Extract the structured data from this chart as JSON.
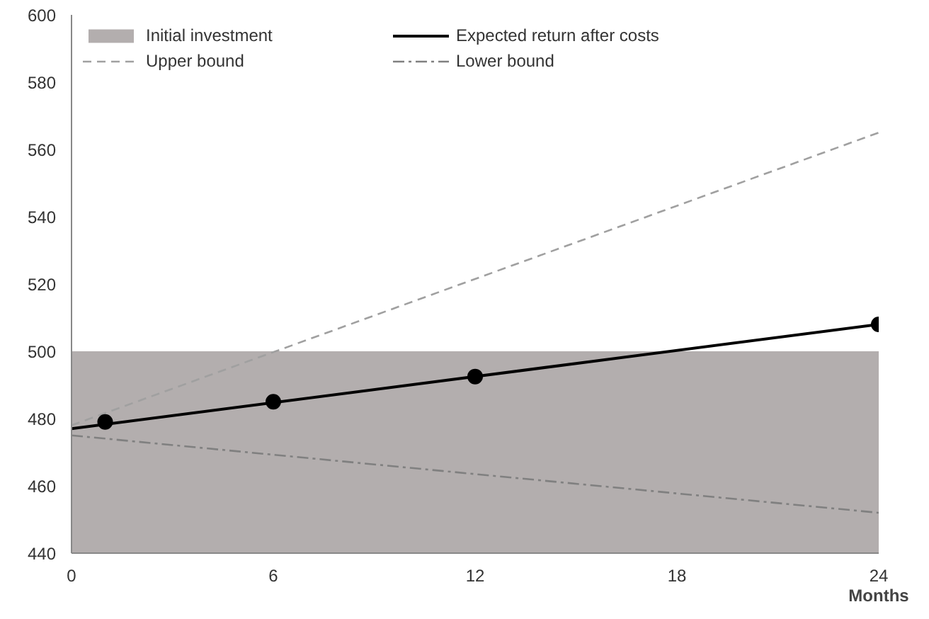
{
  "chart_data": {
    "type": "line",
    "xlabel": "Months",
    "xlim": [
      0,
      24
    ],
    "xticks": [
      0,
      6,
      12,
      18,
      24
    ],
    "ylim": [
      440,
      600
    ],
    "yticks": [
      440,
      460,
      480,
      500,
      520,
      540,
      560,
      580,
      600
    ],
    "grid": false,
    "legend": "top left",
    "series": [
      {
        "name": "Initial investment",
        "type": "area",
        "color": "#b3aeae",
        "x": [
          0,
          24
        ],
        "values": [
          500,
          500
        ]
      },
      {
        "name": "Expected return after costs",
        "color": "#000000",
        "line_style": "solid",
        "x": [
          0,
          24
        ],
        "values": [
          477,
          508
        ]
      },
      {
        "name": "Upper bound",
        "color": "#a0a0a0",
        "line_style": "dashed",
        "x": [
          0,
          24
        ],
        "values": [
          478,
          565
        ]
      },
      {
        "name": "Lower bound",
        "color": "#808080",
        "line_style": "dashdot",
        "x": [
          0,
          24
        ],
        "values": [
          475,
          452
        ]
      },
      {
        "type": "scatter",
        "color": "#000000",
        "marker": "circle",
        "x": [
          1,
          6,
          12,
          24
        ],
        "values": [
          479,
          485,
          492.5,
          508
        ]
      }
    ]
  }
}
